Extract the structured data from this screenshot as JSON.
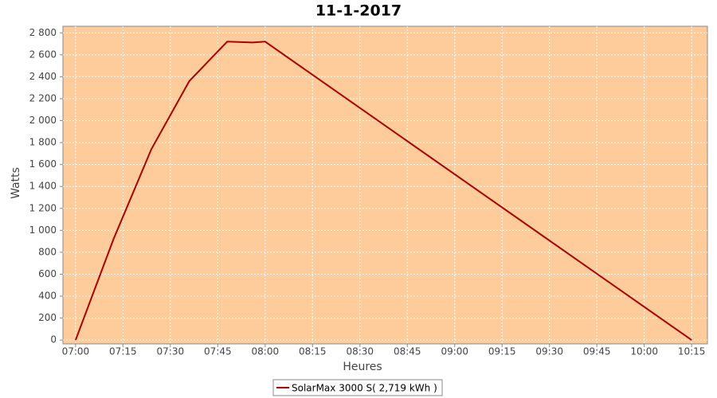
{
  "chart_data": {
    "type": "line",
    "title": "11-1-2017",
    "x_label": "Heures",
    "y_label": "Watts",
    "x": [
      "07:00",
      "07:12",
      "07:24",
      "07:36",
      "07:42",
      "07:48",
      "07:56",
      "08:00",
      "10:15"
    ],
    "series": [
      {
        "name": "SolarMax 3000 S( 2,719 kWh )",
        "color": "#aa0000",
        "values": [
          0,
          920,
          1740,
          2360,
          2540,
          2720,
          2712,
          2720,
          0
        ]
      }
    ],
    "xlim": [
      "06:56",
      "10:20"
    ],
    "xticks": [
      "07:00",
      "07:15",
      "07:30",
      "07:45",
      "08:00",
      "08:15",
      "08:30",
      "08:45",
      "09:00",
      "09:15",
      "09:30",
      "09:45",
      "10:00",
      "10:15"
    ],
    "ylim": [
      -35,
      2860
    ],
    "yticks": [
      0,
      200,
      400,
      600,
      800,
      {
        "value": 1000,
        "label": "1 000"
      },
      {
        "value": 1200,
        "label": "1 200"
      },
      {
        "value": 1400,
        "label": "1 400"
      },
      {
        "value": 1600,
        "label": "1 600"
      },
      {
        "value": 1800,
        "label": "1 800"
      },
      {
        "value": 2000,
        "label": "2 000"
      },
      {
        "value": 2200,
        "label": "2 200"
      },
      {
        "value": 2400,
        "label": "2 400"
      },
      {
        "value": 2600,
        "label": "2 600"
      },
      {
        "value": 2800,
        "label": "2 800"
      }
    ],
    "grid": true,
    "plot_background": "#fecb9a",
    "legend": "bottom"
  }
}
